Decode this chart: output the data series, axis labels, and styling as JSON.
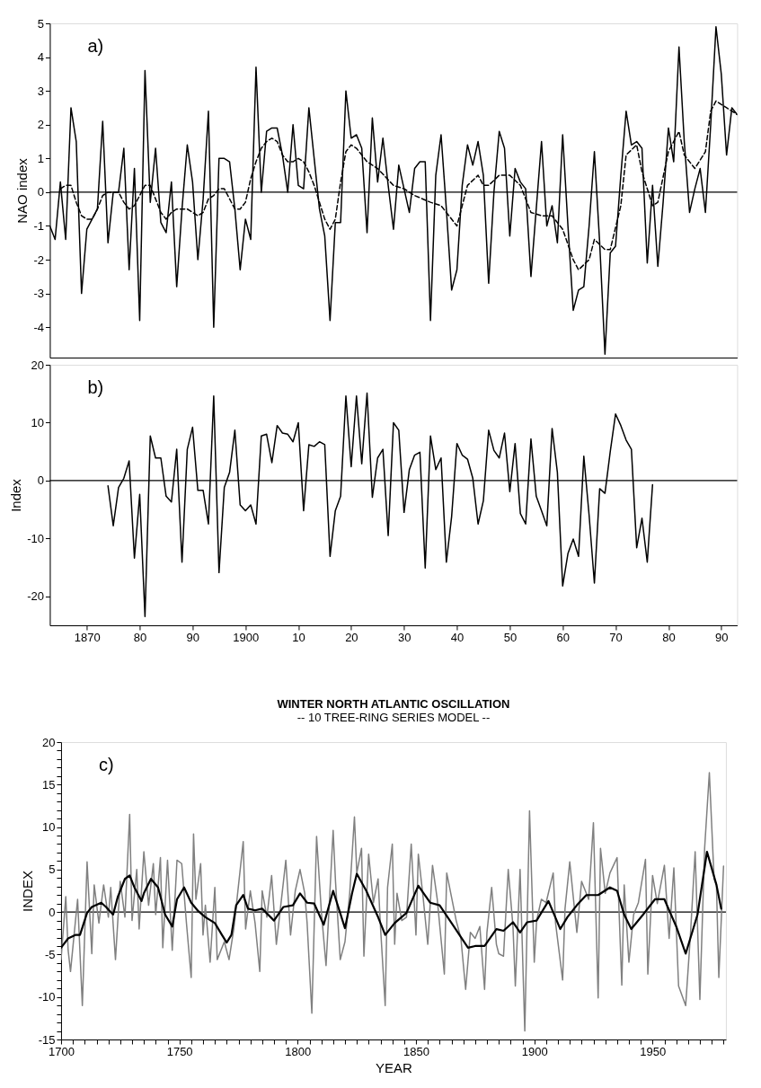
{
  "chart_data": [
    {
      "type": "line",
      "ylabel": "NAO index",
      "xlim": [
        1863,
        1993
      ],
      "ylim": [
        -4.9,
        5
      ],
      "yticks": [
        -4,
        -3,
        -2,
        -1,
        0,
        1,
        2,
        3,
        4,
        5
      ],
      "tick_labels": "y",
      "grid": false,
      "annotations": [
        "a)"
      ],
      "ref_lines": [
        {
          "axis": "y",
          "value": 0,
          "color": "#000000"
        }
      ],
      "series": [
        {
          "color": "#000000",
          "line_style": "solid",
          "x": [
            1863,
            1864,
            1865,
            1866,
            1867,
            1868,
            1869,
            1870,
            1871,
            1872,
            1873,
            1874,
            1875,
            1876,
            1877,
            1878,
            1879,
            1880,
            1881,
            1882,
            1883,
            1884,
            1885,
            1886,
            1887,
            1888,
            1889,
            1890,
            1891,
            1892,
            1893,
            1894,
            1895,
            1896,
            1897,
            1898,
            1899,
            1900,
            1901,
            1902,
            1903,
            1904,
            1905,
            1906,
            1907,
            1908,
            1909,
            1910,
            1911,
            1912,
            1913,
            1914,
            1915,
            1916,
            1917,
            1918,
            1919,
            1920,
            1921,
            1922,
            1923,
            1924,
            1925,
            1926,
            1927,
            1928,
            1929,
            1930,
            1931,
            1932,
            1933,
            1934,
            1935,
            1936,
            1937,
            1938,
            1939,
            1940,
            1941,
            1942,
            1943,
            1944,
            1945,
            1946,
            1947,
            1948,
            1949,
            1950,
            1951,
            1952,
            1953,
            1954,
            1955,
            1956,
            1957,
            1958,
            1959,
            1960,
            1961,
            1962,
            1963,
            1964,
            1965,
            1966,
            1967,
            1968,
            1969,
            1970,
            1971,
            1972,
            1973,
            1974,
            1975,
            1976,
            1977,
            1978,
            1979,
            1980,
            1981,
            1982,
            1983,
            1984,
            1985,
            1986,
            1987,
            1988,
            1989,
            1990,
            1991,
            1992,
            1993
          ],
          "values": [
            -1.0,
            -1.4,
            0.3,
            -1.4,
            2.5,
            1.5,
            -3.0,
            -1.1,
            -0.8,
            -0.5,
            2.1,
            -1.5,
            0.0,
            0.0,
            1.3,
            -2.3,
            0.7,
            -3.8,
            3.6,
            -0.3,
            1.3,
            -0.9,
            -1.2,
            0.3,
            -2.8,
            -0.5,
            1.4,
            0.3,
            -2.0,
            -0.2,
            2.4,
            -4.0,
            1.0,
            1.0,
            0.9,
            -0.5,
            -2.3,
            -0.8,
            -1.4,
            3.7,
            0.0,
            1.8,
            1.9,
            1.9,
            1.1,
            0.0,
            2.0,
            0.2,
            0.1,
            2.5,
            1.0,
            -0.5,
            -1.3,
            -3.8,
            -0.9,
            -0.9,
            3.0,
            1.6,
            1.7,
            1.3,
            -1.2,
            2.2,
            0.3,
            1.6,
            0.2,
            -1.1,
            0.8,
            0.1,
            -0.6,
            0.7,
            0.9,
            0.9,
            -3.8,
            0.5,
            1.7,
            -0.5,
            -2.9,
            -2.3,
            0.2,
            1.4,
            0.8,
            1.5,
            0.5,
            -2.7,
            0.0,
            1.8,
            1.3,
            -1.3,
            0.7,
            0.3,
            0.1,
            -2.5,
            -0.5,
            1.5,
            -1.0,
            -0.4,
            -1.5,
            1.7,
            -1.0,
            -3.5,
            -2.9,
            -2.8,
            -1.0,
            1.2,
            -1.5,
            -4.8,
            -1.8,
            -1.6,
            0.5,
            2.4,
            1.4,
            1.5,
            1.3,
            -2.1,
            0.2,
            -2.2,
            -0.3,
            1.9,
            0.9,
            4.3,
            1.5,
            -0.6,
            0.1,
            0.7,
            -0.6,
            2.0,
            4.9,
            3.5,
            1.1,
            2.5,
            2.3
          ]
        },
        {
          "color": "#000000",
          "line_style": "dashed",
          "x": [
            1865,
            1866,
            1867,
            1868,
            1869,
            1870,
            1871,
            1872,
            1873,
            1874,
            1875,
            1876,
            1877,
            1878,
            1879,
            1880,
            1881,
            1882,
            1883,
            1884,
            1885,
            1886,
            1887,
            1888,
            1889,
            1890,
            1891,
            1892,
            1893,
            1894,
            1895,
            1896,
            1897,
            1898,
            1899,
            1900,
            1901,
            1902,
            1903,
            1904,
            1905,
            1906,
            1907,
            1908,
            1909,
            1910,
            1911,
            1912,
            1913,
            1914,
            1915,
            1916,
            1917,
            1918,
            1919,
            1920,
            1921,
            1922,
            1923,
            1925,
            1928,
            1930,
            1932,
            1935,
            1937,
            1940,
            1942,
            1944,
            1945,
            1946,
            1948,
            1950,
            1952,
            1954,
            1956,
            1958,
            1960,
            1962,
            1963,
            1965,
            1966,
            1968,
            1969,
            1971,
            1972,
            1974,
            1975,
            1977,
            1978,
            1980,
            1982,
            1983,
            1985,
            1987,
            1988,
            1989,
            1991,
            1993
          ],
          "values": [
            0.1,
            0.2,
            0.2,
            -0.3,
            -0.7,
            -0.8,
            -0.8,
            -0.5,
            -0.1,
            0.0,
            0.0,
            0.0,
            -0.3,
            -0.5,
            -0.4,
            -0.1,
            0.2,
            0.2,
            -0.2,
            -0.6,
            -0.8,
            -0.6,
            -0.5,
            -0.5,
            -0.5,
            -0.6,
            -0.7,
            -0.6,
            -0.2,
            -0.1,
            0.1,
            0.1,
            -0.2,
            -0.5,
            -0.5,
            -0.3,
            0.4,
            0.9,
            1.3,
            1.5,
            1.6,
            1.5,
            1.1,
            0.9,
            0.9,
            1.0,
            0.9,
            0.6,
            0.2,
            -0.3,
            -0.8,
            -1.1,
            -0.8,
            0.3,
            1.2,
            1.4,
            1.3,
            1.1,
            0.9,
            0.7,
            0.2,
            0.1,
            -0.1,
            -0.3,
            -0.4,
            -1.0,
            0.2,
            0.5,
            0.2,
            0.2,
            0.5,
            0.5,
            0.2,
            -0.6,
            -0.7,
            -0.7,
            -1.1,
            -2.0,
            -2.3,
            -2.0,
            -1.4,
            -1.7,
            -1.7,
            -0.4,
            1.1,
            1.4,
            0.6,
            -0.4,
            -0.3,
            1.2,
            1.8,
            1.1,
            0.7,
            1.2,
            2.4,
            2.7,
            2.5,
            2.3
          ]
        }
      ]
    },
    {
      "type": "line",
      "ylabel": "Index",
      "xlim": [
        1863,
        1993
      ],
      "ylim": [
        -25,
        20
      ],
      "yticks": [
        -20,
        -10,
        0,
        10,
        20
      ],
      "xticks": [
        1870,
        {
          "value": 1880,
          "label": "80"
        },
        {
          "value": 1890,
          "label": "90"
        },
        1900,
        {
          "value": 1910,
          "label": "10"
        },
        {
          "value": 1920,
          "label": "20"
        },
        {
          "value": 1930,
          "label": "30"
        },
        {
          "value": 1940,
          "label": "40"
        },
        {
          "value": 1950,
          "label": "50"
        },
        {
          "value": 1960,
          "label": "60"
        },
        {
          "value": 1970,
          "label": "70"
        },
        {
          "value": 1980,
          "label": "80"
        },
        {
          "value": 1990,
          "label": "90"
        }
      ],
      "grid": false,
      "annotations": [
        "b)"
      ],
      "ref_lines": [
        {
          "axis": "y",
          "value": 0,
          "color": "#000000"
        }
      ],
      "series": [
        {
          "color": "#000000",
          "line_style": "solid",
          "x": [
            1874,
            1875,
            1876,
            1877,
            1878,
            1879,
            1880,
            1881,
            1882,
            1883,
            1884,
            1885,
            1886,
            1887,
            1888,
            1889,
            1890,
            1891,
            1892,
            1893,
            1894,
            1895,
            1896,
            1897,
            1898,
            1899,
            1900,
            1901,
            1902,
            1903,
            1904,
            1905,
            1906,
            1907,
            1908,
            1909,
            1910,
            1911,
            1912,
            1913,
            1914,
            1915,
            1916,
            1917,
            1918,
            1919,
            1920,
            1921,
            1922,
            1923,
            1924,
            1925,
            1926,
            1927,
            1928,
            1929,
            1930,
            1931,
            1932,
            1933,
            1934,
            1935,
            1936,
            1937,
            1938,
            1939,
            1940,
            1941,
            1942,
            1943,
            1944,
            1945,
            1946,
            1947,
            1948,
            1949,
            1950,
            1951,
            1952,
            1953,
            1954,
            1955,
            1956,
            1957,
            1958,
            1959,
            1960,
            1961,
            1962,
            1963,
            1964,
            1965,
            1966,
            1967,
            1968,
            1969,
            1970,
            1971,
            1972,
            1973,
            1974,
            1975,
            1976,
            1977
          ],
          "values": [
            -0.9,
            -7.8,
            -1.2,
            0.4,
            3.4,
            -13.4,
            -2.4,
            -23.5,
            7.7,
            3.9,
            3.9,
            -2.7,
            -3.7,
            5.4,
            -14.1,
            5.4,
            9.2,
            -1.7,
            -1.7,
            -7.5,
            14.6,
            -15.9,
            -1.2,
            1.4,
            8.7,
            -4.2,
            -5.2,
            -4.2,
            -7.5,
            7.7,
            8.0,
            3.1,
            9.5,
            8.2,
            8.0,
            6.7,
            10.0,
            -5.2,
            6.2,
            5.9,
            6.7,
            6.2,
            -13.1,
            -5.2,
            -2.7,
            14.6,
            2.4,
            14.6,
            2.9,
            15.1,
            -2.9,
            3.9,
            5.4,
            -9.5,
            10.0,
            8.7,
            -5.5,
            1.9,
            4.4,
            4.9,
            -15.1,
            7.7,
            1.9,
            3.9,
            -14.1,
            -6.2,
            6.4,
            4.4,
            3.7,
            0.4,
            -7.5,
            -3.5,
            8.7,
            5.2,
            3.9,
            8.2,
            -1.9,
            6.4,
            -5.7,
            -7.5,
            7.2,
            -2.7,
            -5.2,
            -7.8,
            9.0,
            1.4,
            -18.2,
            -12.6,
            -10.1,
            -13.1,
            4.2,
            -6.0,
            -17.7,
            -1.4,
            -2.2,
            5.0,
            11.5,
            9.5,
            7.0,
            5.4,
            -11.6,
            -6.5,
            -14.1,
            -0.7
          ]
        }
      ]
    },
    {
      "type": "line",
      "title": "WINTER NORTH ATLANTIC OSCILLATION",
      "subtitle": "-- 10 TREE-RING SERIES MODEL --",
      "xlabel": "YEAR",
      "ylabel": "INDEX",
      "xlim": [
        1700,
        1981
      ],
      "ylim": [
        -15,
        20
      ],
      "xticks": [
        1700,
        {
          "value": 1705,
          "label": null
        },
        {
          "value": 1710,
          "label": null
        },
        {
          "value": 1715,
          "label": null
        },
        {
          "value": 1720,
          "label": null
        },
        {
          "value": 1725,
          "label": null
        },
        {
          "value": 1730,
          "label": null
        },
        {
          "value": 1735,
          "label": null
        },
        {
          "value": 1740,
          "label": null
        },
        {
          "value": 1745,
          "label": null
        },
        1750,
        {
          "value": 1755,
          "label": null
        },
        {
          "value": 1760,
          "label": null
        },
        {
          "value": 1765,
          "label": null
        },
        {
          "value": 1770,
          "label": null
        },
        {
          "value": 1775,
          "label": null
        },
        {
          "value": 1780,
          "label": null
        },
        {
          "value": 1785,
          "label": null
        },
        {
          "value": 1790,
          "label": null
        },
        {
          "value": 1795,
          "label": null
        },
        1800,
        {
          "value": 1805,
          "label": null
        },
        {
          "value": 1810,
          "label": null
        },
        {
          "value": 1815,
          "label": null
        },
        {
          "value": 1820,
          "label": null
        },
        {
          "value": 1825,
          "label": null
        },
        {
          "value": 1830,
          "label": null
        },
        {
          "value": 1835,
          "label": null
        },
        {
          "value": 1840,
          "label": null
        },
        {
          "value": 1845,
          "label": null
        },
        1850,
        {
          "value": 1855,
          "label": null
        },
        {
          "value": 1860,
          "label": null
        },
        {
          "value": 1865,
          "label": null
        },
        {
          "value": 1870,
          "label": null
        },
        {
          "value": 1875,
          "label": null
        },
        {
          "value": 1880,
          "label": null
        },
        {
          "value": 1885,
          "label": null
        },
        {
          "value": 1890,
          "label": null
        },
        {
          "value": 1895,
          "label": null
        },
        1900,
        {
          "value": 1905,
          "label": null
        },
        {
          "value": 1910,
          "label": null
        },
        {
          "value": 1915,
          "label": null
        },
        {
          "value": 1920,
          "label": null
        },
        {
          "value": 1925,
          "label": null
        },
        {
          "value": 1930,
          "label": null
        },
        {
          "value": 1935,
          "label": null
        },
        {
          "value": 1940,
          "label": null
        },
        {
          "value": 1945,
          "label": null
        },
        1950,
        {
          "value": 1955,
          "label": null
        },
        {
          "value": 1960,
          "label": null
        },
        {
          "value": 1965,
          "label": null
        },
        {
          "value": 1970,
          "label": null
        },
        {
          "value": 1975,
          "label": null
        },
        {
          "value": 1980,
          "label": null
        }
      ],
      "yticks": [
        -15,
        {
          "value": -14,
          "label": null
        },
        {
          "value": -13,
          "label": null
        },
        {
          "value": -12,
          "label": null
        },
        {
          "value": -11,
          "label": null
        },
        -10,
        {
          "value": -9,
          "label": null
        },
        {
          "value": -8,
          "label": null
        },
        {
          "value": -7,
          "label": null
        },
        {
          "value": -6,
          "label": null
        },
        -5,
        {
          "value": -4,
          "label": null
        },
        {
          "value": -3,
          "label": null
        },
        {
          "value": -2,
          "label": null
        },
        {
          "value": -1,
          "label": null
        },
        0,
        {
          "value": 1,
          "label": null
        },
        {
          "value": 2,
          "label": null
        },
        {
          "value": 3,
          "label": null
        },
        {
          "value": 4,
          "label": null
        },
        5,
        {
          "value": 6,
          "label": null
        },
        {
          "value": 7,
          "label": null
        },
        {
          "value": 8,
          "label": null
        },
        {
          "value": 9,
          "label": null
        },
        10,
        {
          "value": 11,
          "label": null
        },
        {
          "value": 12,
          "label": null
        },
        {
          "value": 13,
          "label": null
        },
        {
          "value": 14,
          "label": null
        },
        15,
        {
          "value": 16,
          "label": null
        },
        {
          "value": 17,
          "label": null
        },
        {
          "value": 18,
          "label": null
        },
        {
          "value": 19,
          "label": null
        },
        20
      ],
      "grid": false,
      "annotations": [
        "c)"
      ],
      "ref_lines": [
        {
          "axis": "y",
          "value": 0,
          "color": "#000000"
        }
      ],
      "series": [
        {
          "color": "#808080",
          "line_style": "solid",
          "x": [
            1700,
            1702,
            1703,
            1704,
            1706,
            1707,
            1709,
            1711,
            1713,
            1714,
            1716,
            1718,
            1720,
            1721,
            1723,
            1725,
            1727,
            1729,
            1730,
            1732,
            1733,
            1735,
            1737,
            1739,
            1740,
            1742,
            1743,
            1745,
            1747,
            1749,
            1751,
            1753,
            1755,
            1756,
            1757,
            1759,
            1760,
            1761,
            1763,
            1765,
            1766,
            1769,
            1771,
            1773,
            1777,
            1778,
            1780,
            1782,
            1784,
            1785,
            1787,
            1789,
            1791,
            1794,
            1795,
            1797,
            1799,
            1801,
            1803,
            1804,
            1806,
            1808,
            1810,
            1812,
            1815,
            1816,
            1818,
            1820,
            1822,
            1824,
            1825,
            1827,
            1828,
            1830,
            1832,
            1834,
            1835,
            1837,
            1838,
            1840,
            1841,
            1842,
            1844,
            1846,
            1848,
            1850,
            1851,
            1853,
            1855,
            1857,
            1859,
            1862,
            1863,
            1865,
            1867,
            1869,
            1871,
            1873,
            1875,
            1877,
            1879,
            1880,
            1882,
            1884,
            1885,
            1887,
            1889,
            1891,
            1892,
            1894,
            1896,
            1898,
            1900,
            1901,
            1903,
            1905,
            1908,
            1909,
            1912,
            1913,
            1915,
            1918,
            1920,
            1923,
            1925,
            1927,
            1928,
            1930,
            1932,
            1935,
            1937,
            1938,
            1940,
            1942,
            1944,
            1947,
            1948,
            1950,
            1952,
            1955,
            1957,
            1959,
            1961,
            1964,
            1966,
            1968,
            1970,
            1972,
            1974,
            1976,
            1977,
            1978,
            1980
          ],
          "values": [
            -5.6,
            1.8,
            -4.5,
            -7.0,
            -1.3,
            1.5,
            -11.0,
            5.9,
            -4.9,
            3.2,
            -1.3,
            3.2,
            -0.6,
            2.9,
            -5.6,
            3.6,
            -0.6,
            11.5,
            -1.0,
            5.0,
            -2.0,
            7.1,
            0.8,
            5.7,
            -0.3,
            6.4,
            -4.2,
            6.1,
            -4.5,
            6.1,
            5.7,
            -1.3,
            -7.7,
            9.2,
            1.5,
            5.7,
            -2.7,
            0.8,
            -5.9,
            2.9,
            -5.6,
            -3.5,
            -5.6,
            -2.0,
            8.3,
            -2.0,
            2.5,
            -1.3,
            -7.0,
            2.5,
            -0.6,
            4.3,
            -3.8,
            3.6,
            6.1,
            -2.7,
            2.5,
            5.0,
            2.2,
            -1.3,
            -11.9,
            8.9,
            0.1,
            -6.3,
            9.6,
            3.6,
            -5.6,
            -3.5,
            2.2,
            11.2,
            4.6,
            7.5,
            -5.2,
            6.8,
            1.1,
            3.9,
            -1.7,
            -11.0,
            2.9,
            8.0,
            -3.8,
            2.2,
            -1.0,
            -0.6,
            8.0,
            -2.7,
            6.8,
            1.8,
            -3.8,
            5.5,
            1.5,
            -7.3,
            4.6,
            1.8,
            -1.0,
            -3.1,
            -9.1,
            -2.4,
            -3.1,
            -1.7,
            -9.1,
            -2.4,
            2.9,
            -3.8,
            -4.9,
            -5.2,
            5.0,
            -1.7,
            -8.7,
            5.0,
            -14.0,
            11.9,
            -5.9,
            -1.0,
            1.5,
            1.1,
            4.6,
            -1.3,
            -8.0,
            0.4,
            5.9,
            -2.4,
            3.6,
            1.5,
            10.5,
            -10.1,
            7.5,
            2.2,
            4.6,
            6.4,
            -8.6,
            3.2,
            -5.9,
            -0.3,
            1.1,
            6.2,
            -7.3,
            4.3,
            1.0,
            5.5,
            -3.1,
            5.2,
            -8.7,
            -11.0,
            -2.7,
            7.1,
            -10.3,
            7.5,
            16.4,
            3.9,
            3.2,
            -7.7,
            5.4
          ]
        },
        {
          "color": "#000000",
          "line_style": "solid",
          "x": [
            1700,
            1703,
            1706,
            1708,
            1711,
            1713,
            1717,
            1719,
            1722,
            1724,
            1727,
            1729,
            1731,
            1734,
            1735,
            1738,
            1741,
            1744,
            1747,
            1749,
            1752,
            1755,
            1758,
            1761,
            1765,
            1768,
            1770,
            1772,
            1774,
            1777,
            1779,
            1782,
            1785,
            1790,
            1794,
            1798,
            1801,
            1804,
            1807,
            1811,
            1815,
            1820,
            1823,
            1825,
            1829,
            1834,
            1837,
            1841,
            1846,
            1851,
            1856,
            1860,
            1866,
            1872,
            1875,
            1879,
            1884,
            1887,
            1891,
            1894,
            1897,
            1901,
            1906,
            1911,
            1914,
            1918,
            1922,
            1927,
            1932,
            1935,
            1938,
            1941,
            1946,
            1951,
            1955,
            1960,
            1964,
            1969,
            1973,
            1977,
            1979
          ],
          "values": [
            -4.2,
            -3.1,
            -2.7,
            -2.7,
            -0.1,
            0.6,
            1.1,
            0.6,
            -0.3,
            1.8,
            3.9,
            4.3,
            2.9,
            1.3,
            2.2,
            3.9,
            2.9,
            -0.3,
            -1.7,
            1.5,
            2.9,
            1.1,
            0.1,
            -0.6,
            -1.3,
            -2.7,
            -3.6,
            -2.7,
            0.8,
            2.0,
            0.4,
            0.2,
            0.4,
            -1.0,
            0.6,
            0.8,
            2.2,
            1.1,
            1.0,
            -1.5,
            2.5,
            -1.9,
            2.2,
            4.5,
            2.5,
            -0.6,
            -2.7,
            -1.3,
            -0.1,
            3.1,
            1.1,
            0.8,
            -1.7,
            -4.2,
            -4.0,
            -4.0,
            -2.0,
            -2.2,
            -1.2,
            -2.4,
            -1.2,
            -1.0,
            1.3,
            -2.0,
            -0.6,
            0.8,
            2.0,
            2.0,
            2.9,
            2.5,
            -0.3,
            -2.0,
            -0.3,
            1.5,
            1.5,
            -1.7,
            -4.9,
            -0.3,
            7.1,
            3.2,
            0.4
          ]
        }
      ]
    }
  ]
}
